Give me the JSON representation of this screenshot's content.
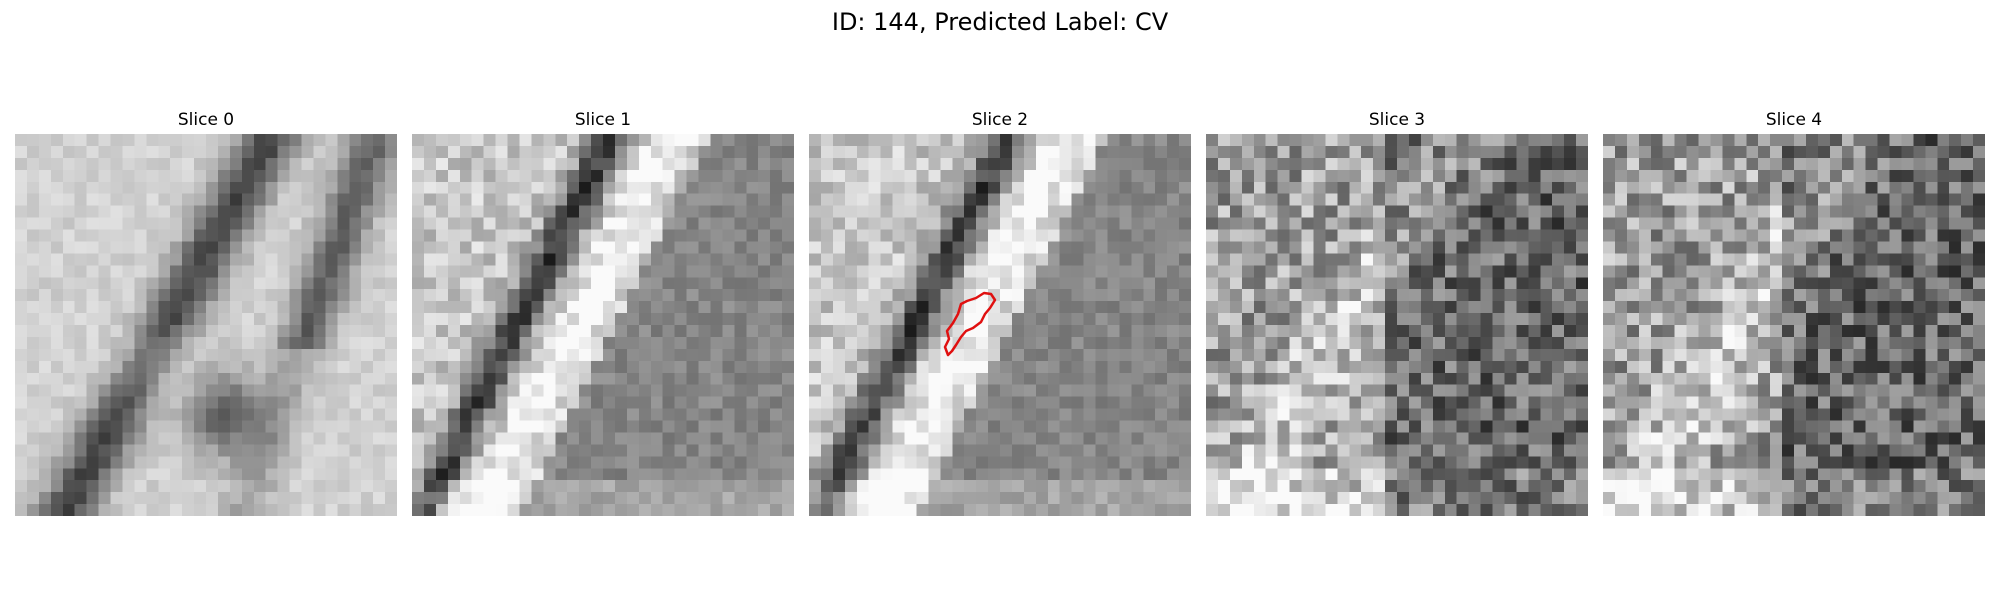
{
  "figure": {
    "title": "ID: 144, Predicted Label: CV"
  },
  "slices": [
    {
      "title": "Slice 0",
      "seed": 11,
      "pattern": "vessel-blur",
      "has_contour": false
    },
    {
      "title": "Slice 1",
      "seed": 23,
      "pattern": "vessel-band",
      "has_contour": false
    },
    {
      "title": "Slice 2",
      "seed": 37,
      "pattern": "vessel-band",
      "has_contour": true
    },
    {
      "title": "Slice 3",
      "seed": 51,
      "pattern": "noisy-dark",
      "has_contour": false
    },
    {
      "title": "Slice 4",
      "seed": 67,
      "pattern": "noisy-dark",
      "has_contour": false
    }
  ],
  "contour": {
    "color": "#e01010"
  }
}
